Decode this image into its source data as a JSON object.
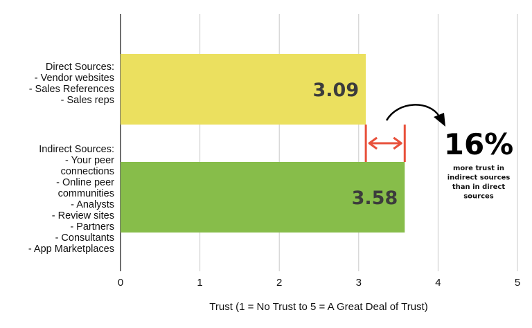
{
  "chart_data": {
    "type": "bar",
    "orientation": "horizontal",
    "categories": [
      [
        "Direct Sources:",
        "- Vendor websites",
        "- Sales References",
        "- Sales reps"
      ],
      [
        "Indirect Sources:",
        "- Your peer",
        "connections",
        "- Online peer",
        "communities",
        "- Analysts",
        "- Review sites",
        "- Partners",
        "- Consultants",
        "- App Marketplaces"
      ]
    ],
    "values": [
      3.09,
      3.58
    ],
    "value_labels": [
      "3.09",
      "3.58"
    ],
    "colors": [
      "#ebe05f",
      "#87bd4a"
    ],
    "xlabel": "Trust (1 = No Trust to 5 = A Great Deal of Trust)",
    "xlim": [
      0,
      5
    ],
    "xticks": [
      0,
      1,
      2,
      3,
      4,
      5
    ],
    "grid": "vertical",
    "annotation": {
      "big_text": "16%",
      "small_text": [
        "more trust in",
        "indirect sources",
        "than in direct",
        "sources"
      ],
      "arrow_color": "#e8503a"
    }
  }
}
